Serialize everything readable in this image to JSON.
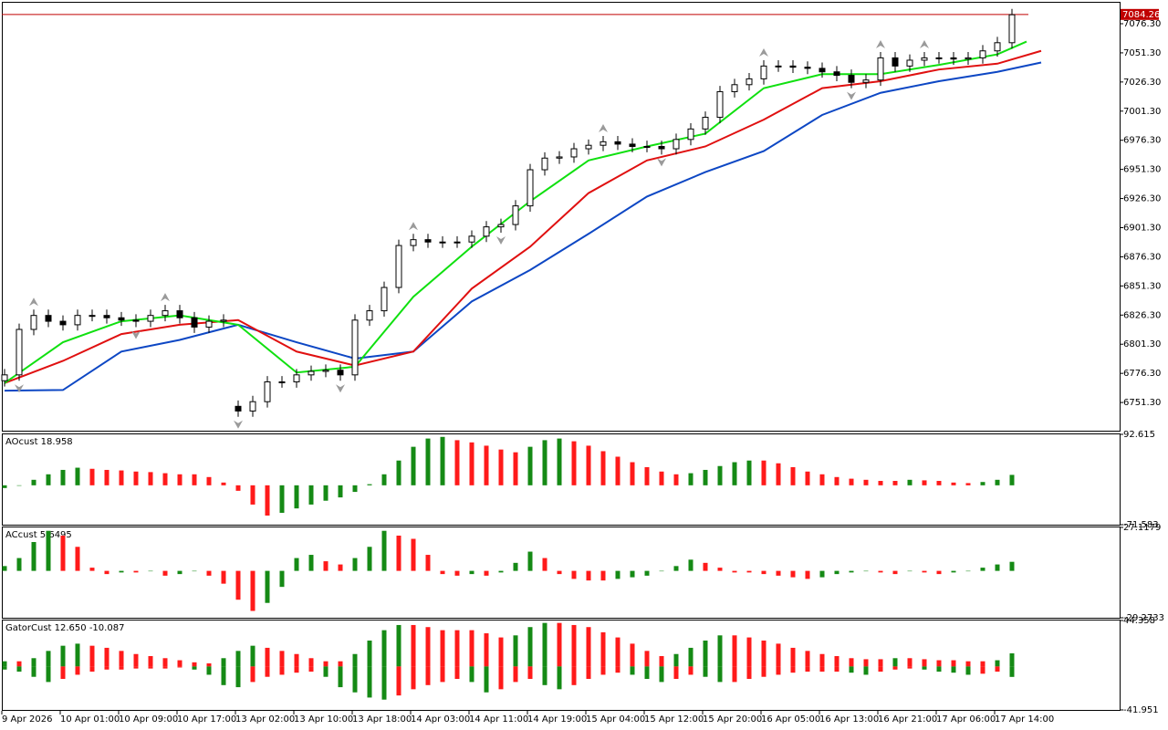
{
  "chart_data": [
    {
      "type": "candlestick",
      "x_labels": [
        "9 Apr 2026",
        "10 Apr 01:00",
        "10 Apr 09:00",
        "10 Apr 17:00",
        "13 Apr 02:00",
        "13 Apr 10:00",
        "13 Apr 18:00",
        "14 Apr 03:00",
        "14 Apr 11:00",
        "14 Apr 19:00",
        "15 Apr 04:00",
        "15 Apr 12:00",
        "15 Apr 20:00",
        "16 Apr 05:00",
        "16 Apr 13:00",
        "16 Apr 21:00",
        "17 Apr 06:00",
        "17 Apr 14:00"
      ],
      "open": [
        6770,
        6775,
        6814,
        6826,
        6821,
        6818,
        6826,
        6826,
        6824,
        6822,
        6821,
        6826,
        6830,
        6824,
        6816,
        6821,
        6748,
        6744,
        6752,
        6769,
        6769,
        6775,
        6778,
        6779,
        6775,
        6822,
        6830,
        6850,
        6886,
        6891,
        6889,
        6889,
        6889,
        6894,
        6902,
        6904,
        6920,
        6951,
        6961,
        6962,
        6969,
        6972,
        6975,
        6973,
        6971,
        6971,
        6969,
        6977,
        6986,
        6996,
        7018,
        7024,
        7029,
        7040,
        7040,
        7039,
        7038,
        7035,
        7032,
        7026,
        7028,
        7047,
        7040,
        7045,
        7047,
        7047,
        7046,
        7047,
        7053,
        7060
      ],
      "high": [
        6780,
        6819,
        6831,
        6831,
        6826,
        6831,
        6831,
        6831,
        6829,
        6827,
        6831,
        6835,
        6835,
        6829,
        6826,
        6827,
        6753,
        6757,
        6774,
        6774,
        6780,
        6783,
        6784,
        6784,
        6827,
        6835,
        6855,
        6891,
        6896,
        6896,
        6894,
        6894,
        6899,
        6907,
        6909,
        6925,
        6956,
        6966,
        6967,
        6974,
        6977,
        6980,
        6980,
        6978,
        6976,
        6976,
        6982,
        6991,
        7001,
        7023,
        7029,
        7034,
        7045,
        7045,
        7045,
        7044,
        7043,
        7040,
        7037,
        7033,
        7052,
        7052,
        7050,
        7052,
        7052,
        7052,
        7052,
        7058,
        7065,
        7089
      ],
      "low": [
        6765,
        6770,
        6809,
        6816,
        6813,
        6813,
        6821,
        6819,
        6817,
        6816,
        6816,
        6821,
        6819,
        6811,
        6811,
        6816,
        6739,
        6739,
        6747,
        6764,
        6764,
        6770,
        6773,
        6770,
        6770,
        6817,
        6825,
        6845,
        6881,
        6884,
        6884,
        6884,
        6884,
        6889,
        6897,
        6899,
        6915,
        6946,
        6956,
        6957,
        6964,
        6967,
        6968,
        6966,
        6966,
        6964,
        6964,
        6972,
        6981,
        6991,
        7013,
        7019,
        7024,
        7035,
        7034,
        7033,
        7030,
        7027,
        7021,
        7021,
        7023,
        7035,
        7035,
        7040,
        7042,
        7041,
        7041,
        7042,
        7048,
        7055
      ],
      "close": [
        6775,
        6814,
        6826,
        6821,
        6818,
        6826,
        6826,
        6824,
        6822,
        6821,
        6826,
        6830,
        6824,
        6816,
        6821,
        6822,
        6744,
        6752,
        6769,
        6769,
        6775,
        6778,
        6779,
        6775,
        6822,
        6830,
        6850,
        6886,
        6891,
        6889,
        6889,
        6889,
        6894,
        6902,
        6904,
        6920,
        6951,
        6961,
        6962,
        6969,
        6972,
        6975,
        6973,
        6971,
        6971,
        6969,
        6977,
        6986,
        6996,
        7018,
        7024,
        7029,
        7040,
        7040,
        7039,
        7038,
        7035,
        7032,
        7026,
        7028,
        7047,
        7040,
        7045,
        7047,
        7047,
        7046,
        7047,
        7053,
        7060,
        7084
      ],
      "series": [
        {
          "color": "#0d47c4",
          "x": [
            0,
            4,
            8,
            12,
            16,
            20,
            24,
            28,
            32,
            36,
            40,
            44,
            48,
            52,
            56,
            60,
            64,
            68,
            71
          ],
          "values": [
            6761.5,
            6762,
            6795,
            6805,
            6818,
            6803,
            6789,
            6795,
            6838,
            6865,
            6896,
            6928,
            6949,
            6967,
            6998,
            7017,
            7027,
            7035,
            7043
          ]
        },
        {
          "color": "#e01010",
          "x": [
            0,
            4,
            8,
            12,
            16,
            20,
            24,
            28,
            32,
            36,
            40,
            44,
            48,
            52,
            56,
            60,
            64,
            68,
            71
          ],
          "values": [
            6768,
            6787,
            6810,
            6818,
            6822,
            6795,
            6783,
            6795,
            6849,
            6885,
            6931,
            6959,
            6971,
            6994,
            7021,
            7027,
            7037,
            7042,
            7053
          ]
        },
        {
          "color": "#10e010",
          "x": [
            0,
            4,
            8,
            12,
            16,
            20,
            24,
            28,
            32,
            36,
            40,
            44,
            48,
            52,
            56,
            60,
            64,
            68,
            70
          ],
          "values": [
            6768,
            6803,
            6821,
            6826,
            6818,
            6777,
            6782,
            6842,
            6885,
            6924,
            6959,
            6971,
            6982,
            7021,
            7033,
            7033,
            7041,
            7050,
            7061
          ]
        }
      ],
      "fractals_up": {
        "x": [
          2,
          11,
          28,
          41,
          52,
          60,
          63
        ],
        "values": [
          6831,
          6835,
          6896,
          6980,
          7045,
          7052,
          7052
        ]
      },
      "fractals_down": {
        "x": [
          1,
          9,
          16,
          23,
          34,
          45,
          58
        ],
        "values": [
          6770,
          6816,
          6739,
          6770,
          6897,
          6964,
          7021
        ]
      },
      "fractal_color": "#9a9a9a",
      "current_price": 7084.26,
      "current_price_color": "#c00000",
      "ylim": [
        6727.1,
        7094.3
      ],
      "yticks": [
        {
          "value": 6751.3,
          "label": "6751.30"
        },
        {
          "value": 6776.3,
          "label": "6776.30"
        },
        {
          "value": 6801.3,
          "label": "6801.30"
        },
        {
          "value": 6826.3,
          "label": "6826.30"
        },
        {
          "value": 6851.3,
          "label": "6851.30"
        },
        {
          "value": 6876.3,
          "label": "6876.30"
        },
        {
          "value": 6901.3,
          "label": "6901.30"
        },
        {
          "value": 6926.3,
          "label": "6926.30"
        },
        {
          "value": 6951.3,
          "label": "6951.30"
        },
        {
          "value": 6976.3,
          "label": "6976.30"
        },
        {
          "value": 7001.3,
          "label": "7001.30"
        },
        {
          "value": 7026.3,
          "label": "7026.30"
        },
        {
          "value": 7051.3,
          "label": "7051.30"
        },
        {
          "value": 7076.3,
          "label": "7076.30"
        }
      ]
    },
    {
      "type": "histogram",
      "title": "AOcust 18.958",
      "up_color": "#158a15",
      "down_color": "#ff1a1a",
      "values": [
        -5,
        0,
        10,
        20,
        28,
        32,
        30,
        28,
        27,
        25,
        24,
        22,
        20,
        20,
        15,
        5,
        -10,
        -35,
        -55,
        -50,
        -42,
        -35,
        -28,
        -22,
        -12,
        2,
        20,
        45,
        70,
        85,
        88,
        82,
        78,
        72,
        65,
        60,
        70,
        82,
        85,
        80,
        72,
        62,
        52,
        42,
        33,
        25,
        20,
        22,
        28,
        35,
        42,
        45,
        45,
        40,
        33,
        25,
        20,
        15,
        12,
        10,
        8,
        8,
        10,
        9,
        8,
        5,
        4,
        6,
        10,
        18.958
      ],
      "ylim": [
        -71.583,
        92.615
      ],
      "yticks": [
        -71.583,
        92.615
      ]
    },
    {
      "type": "histogram",
      "title": "ACcust 5.6495",
      "up_color": "#158a15",
      "down_color": "#ff1a1a",
      "values": [
        3,
        8,
        18,
        25,
        22,
        15,
        2,
        -2,
        -1,
        -1,
        0,
        -3,
        -2,
        0,
        -3,
        -8,
        -18,
        -25,
        -20,
        -10,
        8,
        10,
        6,
        4,
        8,
        15,
        25,
        22,
        20,
        10,
        -2,
        -3,
        -2,
        -3,
        -1,
        5,
        12,
        8,
        -2,
        -5,
        -6,
        -6,
        -5,
        -4,
        -3,
        0,
        3,
        7,
        5,
        2,
        -1,
        -1,
        -2,
        -3,
        -4,
        -5,
        -4,
        -2,
        -1,
        0,
        -1,
        -2,
        0,
        -1,
        -2,
        -1,
        0,
        2,
        4,
        5.6495
      ],
      "ylim": [
        -29.2733,
        27.1179
      ],
      "yticks": [
        -29.2733,
        27.1179
      ]
    },
    {
      "type": "gator",
      "title": "GatorCust 12.650 -10.087",
      "up_color": "#158a15",
      "down_color": "#ff1a1a",
      "series": [
        {
          "values": [
            5,
            5,
            8,
            15,
            20,
            22,
            20,
            18,
            15,
            12,
            10,
            8,
            6,
            4,
            3,
            8,
            15,
            20,
            18,
            15,
            12,
            8,
            5,
            5,
            12,
            25,
            35,
            40,
            40,
            38,
            35,
            35,
            35,
            32,
            28,
            30,
            38,
            42,
            42,
            40,
            38,
            33,
            28,
            22,
            15,
            10,
            12,
            18,
            25,
            30,
            30,
            28,
            25,
            22,
            18,
            15,
            12,
            10,
            8,
            7,
            7,
            8,
            8,
            7,
            6,
            6,
            5,
            5,
            6,
            12.65
          ]
        },
        {
          "values": [
            -3,
            -5,
            -10,
            -15,
            -12,
            -8,
            -5,
            -3,
            -3,
            -2,
            -2,
            -2,
            -1,
            -3,
            -8,
            -18,
            -20,
            -15,
            -10,
            -8,
            -6,
            -5,
            -10,
            -20,
            -25,
            -30,
            -32,
            -28,
            -22,
            -18,
            -15,
            -12,
            -15,
            -25,
            -22,
            -15,
            -12,
            -18,
            -22,
            -18,
            -12,
            -8,
            -6,
            -8,
            -12,
            -15,
            -12,
            -8,
            -10,
            -15,
            -15,
            -12,
            -10,
            -8,
            -6,
            -5,
            -5,
            -5,
            -6,
            -8,
            -5,
            -3,
            -2,
            -3,
            -5,
            -6,
            -8,
            -7,
            -5,
            -10.087
          ]
        }
      ],
      "ylim": [
        -41.951,
        44.358
      ],
      "yticks": [
        -41.951,
        44.358
      ]
    }
  ]
}
